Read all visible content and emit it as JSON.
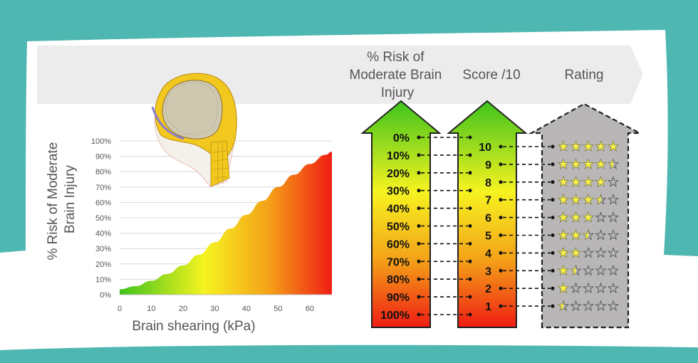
{
  "header": {
    "risk_column_line1": "% Risk of",
    "risk_column_line2": "Moderate Brain",
    "risk_column_line3": "Injury",
    "score_column": "Score /10",
    "rating_column": "Rating"
  },
  "icons": {
    "head_model": "fe-head-model-icon",
    "star": "star-icon"
  },
  "colors": {
    "frame_teal": "#4fb7b1",
    "header_band": "#ececec",
    "rating_arrow": "#b8b6b6",
    "gradient_low": "#3ec41c",
    "gradient_mid": "#f6f320",
    "gradient_high": "#ef1d14",
    "star_fill": "#f8f04a"
  },
  "risk_scale": [
    "0%",
    "10%",
    "20%",
    "30%",
    "40%",
    "50%",
    "60%",
    "70%",
    "80%",
    "90%",
    "100%"
  ],
  "scores": [
    "10",
    "9",
    "8",
    "7",
    "6",
    "5",
    "4",
    "3",
    "2",
    "1"
  ],
  "ratings_stars": [
    5,
    4.5,
    4,
    3.5,
    3,
    2.5,
    2,
    1.5,
    1,
    0.5
  ],
  "chart_data": {
    "type": "area",
    "title": "",
    "xlabel": "Brain shearing (kPa)",
    "ylabel_line1": "% Risk of Moderate",
    "ylabel_line2": "Brain Injury",
    "xlim": [
      0,
      67
    ],
    "ylim": [
      0,
      100
    ],
    "x_ticks": [
      "0",
      "10",
      "20",
      "30",
      "40",
      "50",
      "60"
    ],
    "y_ticks": [
      "0%",
      "10%",
      "20%",
      "30%",
      "40%",
      "50%",
      "60%",
      "70%",
      "80%",
      "90%",
      "100%"
    ],
    "grid": true,
    "series": [
      {
        "x": [
          0,
          5,
          10,
          15,
          20,
          25,
          30,
          35,
          40,
          45,
          50,
          55,
          60,
          65,
          67
        ],
        "y": [
          3.5,
          5.5,
          9,
          13.5,
          19,
          26,
          34,
          43,
          52,
          61,
          70,
          78,
          85,
          91,
          93
        ]
      }
    ]
  }
}
